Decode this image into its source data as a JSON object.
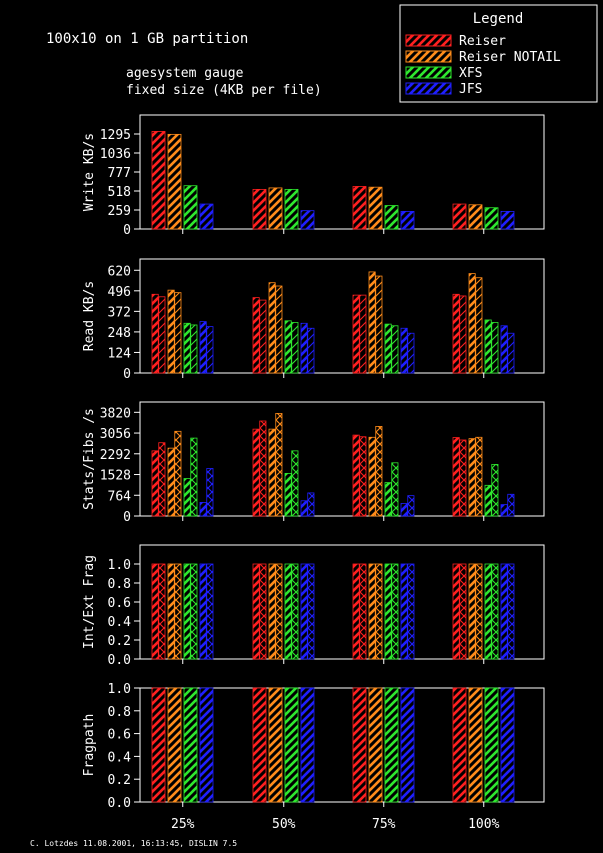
{
  "header": {
    "title": "100x10 on 1 GB partition",
    "subtitle_line1": "agesystem gauge",
    "subtitle_line2": "fixed size (4KB per file)"
  },
  "legend": {
    "title": "Legend",
    "items": [
      {
        "label": "Reiser",
        "color": "#ff2020"
      },
      {
        "label": "Reiser NOTAIL",
        "color": "#ff8c1a"
      },
      {
        "label": "XFS",
        "color": "#2ee82e"
      },
      {
        "label": "JFS",
        "color": "#1f1fff"
      }
    ]
  },
  "footer": {
    "credit": "C. Lotzdes 11.08.2001, 16:13:45, DISLIN 7.5"
  },
  "chart_data": [
    {
      "type": "bar",
      "ylabel": "Write KB/s",
      "yticks": [
        "0",
        "259",
        "518",
        "777",
        "1036",
        "1295"
      ],
      "ylim": [
        0,
        1554
      ],
      "categories": [
        "25%",
        "50%",
        "75%",
        "100%"
      ],
      "series": [
        {
          "name": "Reiser",
          "values": [
            1330,
            540,
            580,
            340
          ]
        },
        {
          "name": "Reiser NOTAIL",
          "values": [
            1290,
            560,
            570,
            330
          ]
        },
        {
          "name": "XFS",
          "values": [
            590,
            540,
            320,
            290
          ]
        },
        {
          "name": "JFS",
          "values": [
            340,
            250,
            240,
            240
          ]
        }
      ]
    },
    {
      "type": "bar",
      "ylabel": "Read KB/s",
      "yticks": [
        "0",
        "124",
        "248",
        "372",
        "496",
        "620"
      ],
      "ylim": [
        0,
        688
      ],
      "categories": [
        "25%",
        "50%",
        "75%",
        "100%"
      ],
      "series": [
        {
          "name": "Reiser",
          "values": [
            [
              475,
              460
            ],
            [
              455,
              440
            ],
            [
              470,
              470
            ],
            [
              475,
              465
            ]
          ]
        },
        {
          "name": "Reiser NOTAIL",
          "values": [
            [
              500,
              485
            ],
            [
              545,
              525
            ],
            [
              610,
              585
            ],
            [
              600,
              575
            ]
          ]
        },
        {
          "name": "XFS",
          "values": [
            [
              300,
              290
            ],
            [
              315,
              305
            ],
            [
              295,
              285
            ],
            [
              320,
              305
            ]
          ]
        },
        {
          "name": "JFS",
          "values": [
            [
              310,
              280
            ],
            [
              300,
              270
            ],
            [
              270,
              240
            ],
            [
              285,
              240
            ]
          ]
        }
      ]
    },
    {
      "type": "bar",
      "ylabel": "Stats/Fibs /s",
      "yticks": [
        "0",
        "764",
        "1528",
        "2292",
        "3056",
        "3820"
      ],
      "ylim": [
        0,
        4200
      ],
      "categories": [
        "25%",
        "50%",
        "75%",
        "100%"
      ],
      "series": [
        {
          "name": "Reiser",
          "values": [
            [
              2400,
              2700
            ],
            [
              3200,
              3500
            ],
            [
              2980,
              2920
            ],
            [
              2890,
              2800
            ]
          ]
        },
        {
          "name": "Reiser NOTAIL",
          "values": [
            [
              2500,
              3120
            ],
            [
              3200,
              3780
            ],
            [
              2900,
              3300
            ],
            [
              2850,
              2900
            ]
          ]
        },
        {
          "name": "XFS",
          "values": [
            [
              1380,
              2870
            ],
            [
              1570,
              2400
            ],
            [
              1230,
              1960
            ],
            [
              1130,
              1900
            ]
          ]
        },
        {
          "name": "JFS",
          "values": [
            [
              500,
              1750
            ],
            [
              560,
              850
            ],
            [
              460,
              750
            ],
            [
              420,
              800
            ]
          ]
        }
      ]
    },
    {
      "type": "bar",
      "ylabel": "Int/Ext Frag",
      "yticks": [
        "0.0",
        "0.2",
        "0.4",
        "0.6",
        "0.8",
        "1.0"
      ],
      "ylim": [
        0,
        1.2
      ],
      "categories": [
        "25%",
        "50%",
        "75%",
        "100%"
      ],
      "series": [
        {
          "name": "Reiser",
          "values": [
            [
              1.0,
              1.0
            ],
            [
              1.0,
              1.0
            ],
            [
              1.0,
              1.0
            ],
            [
              1.0,
              1.0
            ]
          ]
        },
        {
          "name": "Reiser NOTAIL",
          "values": [
            [
              1.0,
              1.0
            ],
            [
              1.0,
              1.0
            ],
            [
              1.0,
              1.0
            ],
            [
              1.0,
              1.0
            ]
          ]
        },
        {
          "name": "XFS",
          "values": [
            [
              1.0,
              1.0
            ],
            [
              1.0,
              1.0
            ],
            [
              1.0,
              1.0
            ],
            [
              1.0,
              1.0
            ]
          ]
        },
        {
          "name": "JFS",
          "values": [
            [
              1.0,
              1.0
            ],
            [
              1.0,
              1.0
            ],
            [
              1.0,
              1.0
            ],
            [
              1.0,
              1.0
            ]
          ]
        }
      ]
    },
    {
      "type": "bar",
      "ylabel": "Fragpath",
      "yticks": [
        "0.0",
        "0.2",
        "0.4",
        "0.6",
        "0.8",
        "1.0"
      ],
      "ylim": [
        0,
        1.0
      ],
      "categories": [
        "25%",
        "50%",
        "75%",
        "100%"
      ],
      "series": [
        {
          "name": "Reiser",
          "values": [
            1.0,
            1.0,
            1.0,
            1.0
          ]
        },
        {
          "name": "Reiser NOTAIL",
          "values": [
            1.0,
            1.0,
            1.0,
            1.0
          ]
        },
        {
          "name": "XFS",
          "values": [
            1.0,
            1.0,
            1.0,
            1.0
          ]
        },
        {
          "name": "JFS",
          "values": [
            1.0,
            1.0,
            1.0,
            1.0
          ]
        }
      ]
    }
  ]
}
